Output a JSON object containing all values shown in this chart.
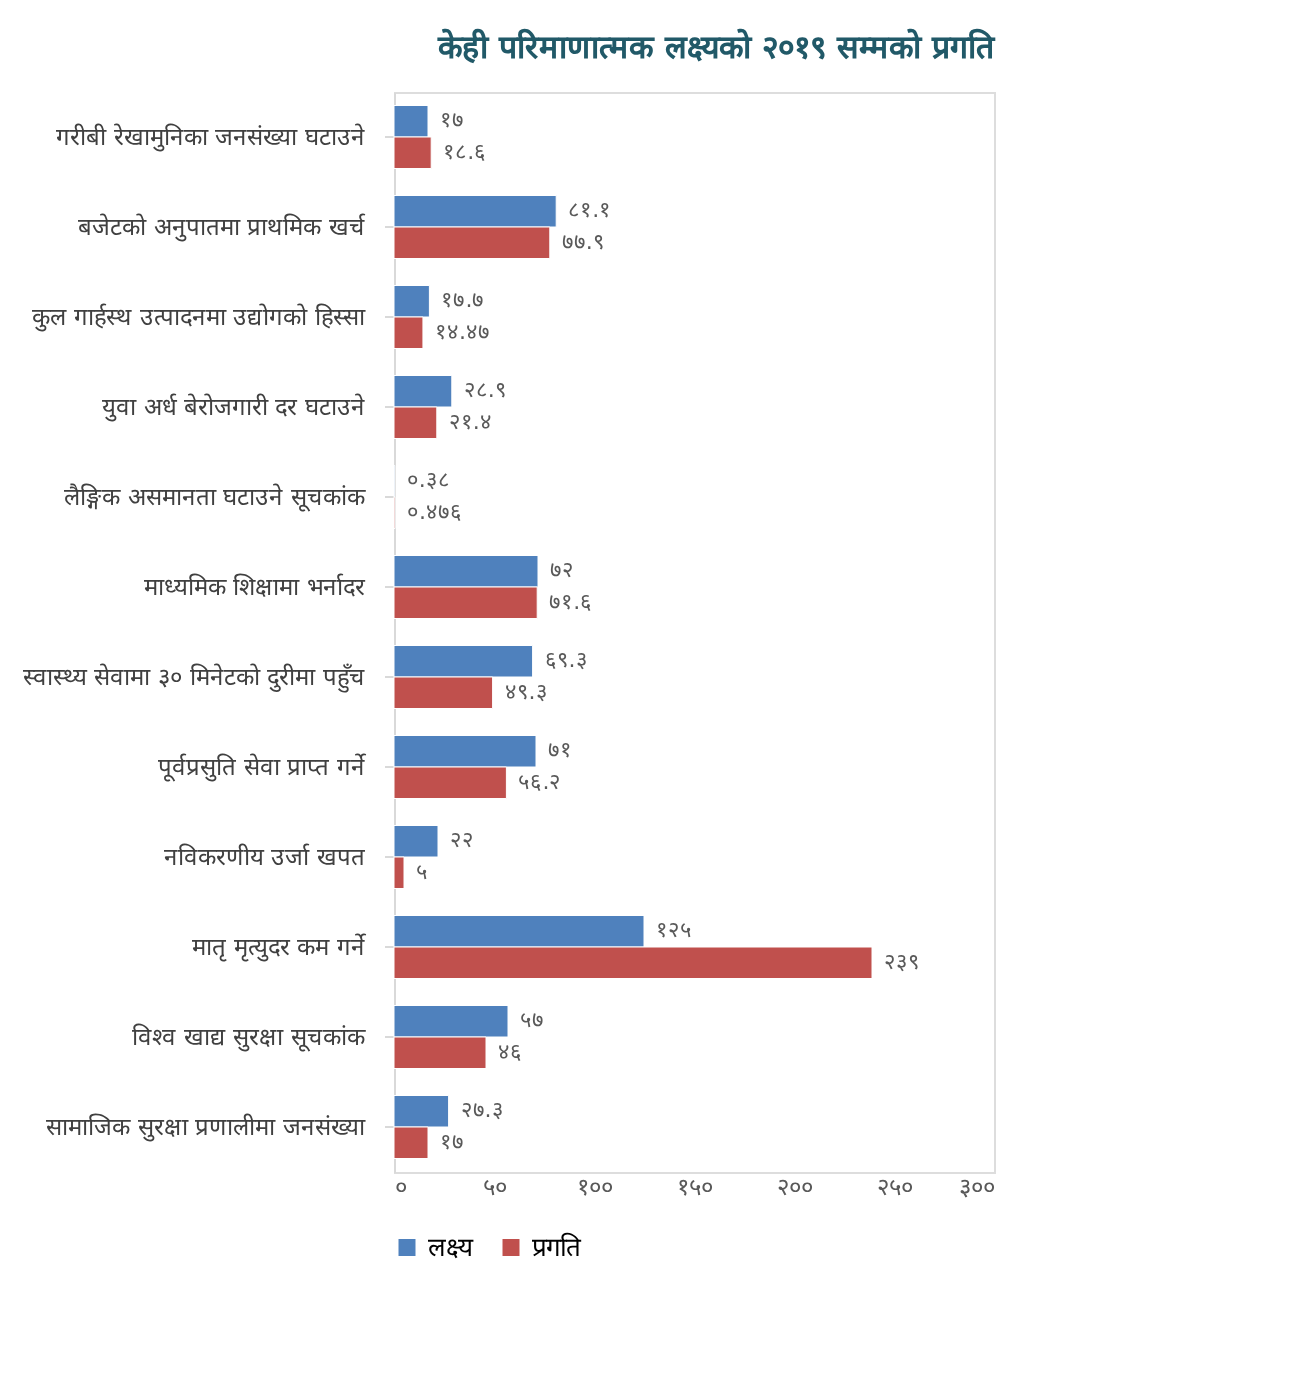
{
  "chart_data": {
    "type": "bar",
    "orientation": "horizontal",
    "title": "केही परिमाणात्मक लक्ष्यको २०१९ सम्मको प्रगति",
    "categories": [
      "गरीबी रेखामुनिका जनसंख्या घटाउने",
      "बजेटको अनुपातमा प्राथमिक खर्च",
      "कुल गार्हस्थ उत्पादनमा उद्योगको हिस्सा",
      "युवा अर्ध बेरोजगारी दर घटाउने",
      "लैङ्गिक असमानता घटाउने सूचकांक",
      "माध्यमिक शिक्षामा भर्नादर",
      "स्वास्थ्य सेवामा ३० मिनेटको दुरीमा पहुँच",
      "पूर्वप्रसुति सेवा प्राप्त गर्ने",
      "नविकरणीय उर्जा खपत",
      "मातृ मृत्युदर कम गर्ने",
      "विश्व खाद्य सुरक्षा सूचकांक",
      "सामाजिक सुरक्षा प्रणालीमा जनसंख्या"
    ],
    "series": [
      {
        "name": "लक्ष्य",
        "color": "#4f81bd",
        "values": [
          17,
          81.1,
          17.7,
          28.9,
          0.38,
          72,
          69.3,
          71,
          22,
          125,
          57,
          27.3
        ],
        "value_labels": [
          "१७",
          "८१.१",
          "१७.७",
          "२८.९",
          "०.३८",
          "७२",
          "६९.३",
          "७१",
          "२२",
          "१२५",
          "५७",
          "२७.३"
        ]
      },
      {
        "name": "प्रगति",
        "color": "#c0504d",
        "values": [
          18.6,
          77.9,
          14.47,
          21.4,
          0.476,
          71.6,
          49.3,
          56.2,
          5,
          239,
          46,
          17
        ],
        "value_labels": [
          "१८.६",
          "७७.९",
          "१४.४७",
          "२१.४",
          "०.४७६",
          "७१.६",
          "४९.३",
          "५६.२",
          "५",
          "२३९",
          "४६",
          "१७"
        ]
      }
    ],
    "xlim": [
      0,
      300
    ],
    "xticks": [
      {
        "value": 0,
        "label": "०"
      },
      {
        "value": 50,
        "label": "५०"
      },
      {
        "value": 100,
        "label": "१००"
      },
      {
        "value": 150,
        "label": "१५०"
      },
      {
        "value": 200,
        "label": "२००"
      },
      {
        "value": 250,
        "label": "२५०"
      },
      {
        "value": 300,
        "label": "३००"
      }
    ],
    "grid": false,
    "legend": "bottom"
  }
}
